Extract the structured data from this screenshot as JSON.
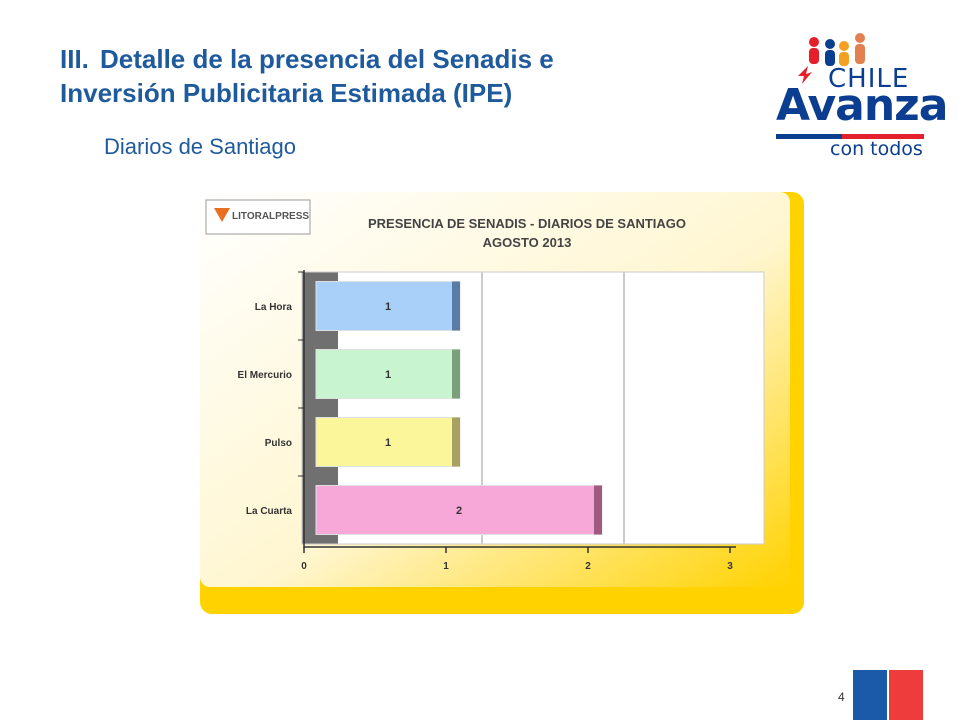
{
  "slide": {
    "title_num": "III.",
    "title_line1": "Detalle de la presencia del Senadis e",
    "title_line2": "Inversión Publicitaria Estimada (IPE)",
    "subtitle": "Diarios de Santiago",
    "page_number": "4"
  },
  "logo": {
    "chile": "CHILE",
    "avanza": "Avanza",
    "con_todos": "con todos"
  },
  "chart_source": "LITORALPRESS",
  "chart_data": {
    "type": "bar",
    "orientation": "horizontal",
    "title": "PRESENCIA DE SENADIS - DIARIOS DE SANTIAGO",
    "subtitle": "AGOSTO 2013",
    "categories": [
      "La Hora",
      "El Mercurio",
      "Pulso",
      "La Cuarta"
    ],
    "values": [
      1,
      1,
      1,
      2
    ],
    "xlim": [
      0,
      3
    ],
    "xticks": [
      "0",
      "1",
      "2",
      "3"
    ],
    "grid": true,
    "colors": {
      "La Hora": "#a8d0f8",
      "El Mercurio": "#c8f5d0",
      "Pulso": "#fcf69a",
      "La Cuarta": "#f7a8d8"
    },
    "side_colors": {
      "La Hora": "#5a7aa8",
      "El Mercurio": "#7aa07a",
      "Pulso": "#a8a060",
      "La Cuarta": "#a05a80"
    },
    "panel_color": "#ffd200"
  }
}
